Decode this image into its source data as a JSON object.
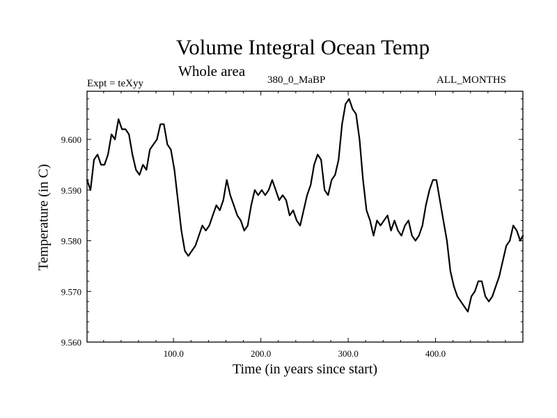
{
  "chart_data": {
    "type": "line",
    "title": "Volume Integral Ocean Temp",
    "subtitle": "Whole area",
    "annotations": {
      "left": "Expt = teXyy",
      "center": "380_0_MaBP",
      "right": "ALL_MONTHS"
    },
    "xlabel": "Time (in years since start)",
    "ylabel": "Temperature (in C)",
    "xlim": [
      1,
      500
    ],
    "ylim": [
      9.56,
      9.6095
    ],
    "xticks": [
      100,
      200,
      300,
      400
    ],
    "xtick_labels": [
      "100.0",
      "200.0",
      "300.0",
      "400.0"
    ],
    "yticks": [
      9.56,
      9.57,
      9.58,
      9.59,
      9.6
    ],
    "ytick_labels": [
      "9.560",
      "9.570",
      "9.580",
      "9.590",
      "9.600"
    ],
    "grid": false,
    "series": [
      {
        "color": "#000000",
        "x": [
          1,
          5,
          9,
          13,
          17,
          21,
          25,
          29,
          33,
          37,
          41,
          45,
          49,
          53,
          57,
          61,
          65,
          69,
          73,
          77,
          81,
          85,
          89,
          93,
          97,
          101,
          105,
          109,
          113,
          117,
          121,
          125,
          129,
          133,
          137,
          141,
          145,
          149,
          153,
          157,
          161,
          165,
          169,
          173,
          177,
          181,
          185,
          189,
          193,
          197,
          201,
          205,
          209,
          213,
          217,
          221,
          225,
          229,
          233,
          237,
          241,
          245,
          249,
          253,
          257,
          261,
          265,
          269,
          273,
          277,
          281,
          285,
          289,
          293,
          297,
          301,
          305,
          309,
          313,
          317,
          321,
          325,
          329,
          333,
          337,
          341,
          345,
          349,
          353,
          357,
          361,
          365,
          369,
          373,
          377,
          381,
          385,
          389,
          393,
          397,
          401,
          405,
          409,
          413,
          417,
          421,
          425,
          429,
          433,
          437,
          441,
          445,
          449,
          453,
          457,
          461,
          465,
          469,
          473,
          477,
          481,
          485,
          489,
          493,
          497,
          500
        ],
        "y": [
          9.592,
          9.59,
          9.596,
          9.597,
          9.595,
          9.595,
          9.597,
          9.601,
          9.6,
          9.604,
          9.602,
          9.602,
          9.601,
          9.597,
          9.594,
          9.593,
          9.595,
          9.594,
          9.598,
          9.599,
          9.6,
          9.603,
          9.603,
          9.599,
          9.598,
          9.594,
          9.588,
          9.582,
          9.578,
          9.577,
          9.578,
          9.579,
          9.581,
          9.583,
          9.582,
          9.583,
          9.585,
          9.587,
          9.586,
          9.588,
          9.592,
          9.589,
          9.587,
          9.585,
          9.584,
          9.582,
          9.583,
          9.587,
          9.59,
          9.589,
          9.59,
          9.589,
          9.59,
          9.592,
          9.59,
          9.588,
          9.589,
          9.588,
          9.585,
          9.586,
          9.584,
          9.583,
          9.586,
          9.589,
          9.591,
          9.595,
          9.597,
          9.596,
          9.59,
          9.589,
          9.592,
          9.593,
          9.596,
          9.603,
          9.607,
          9.608,
          9.606,
          9.605,
          9.6,
          9.592,
          9.586,
          9.584,
          9.581,
          9.584,
          9.583,
          9.584,
          9.585,
          9.582,
          9.584,
          9.582,
          9.581,
          9.583,
          9.584,
          9.581,
          9.58,
          9.581,
          9.583,
          9.587,
          9.59,
          9.592,
          9.592,
          9.588,
          9.584,
          9.58,
          9.574,
          9.571,
          9.569,
          9.568,
          9.567,
          9.566,
          9.569,
          9.57,
          9.572,
          9.572,
          9.569,
          9.568,
          9.569,
          9.571,
          9.573,
          9.576,
          9.579,
          9.58,
          9.583,
          9.582,
          9.58,
          9.581
        ]
      }
    ]
  }
}
